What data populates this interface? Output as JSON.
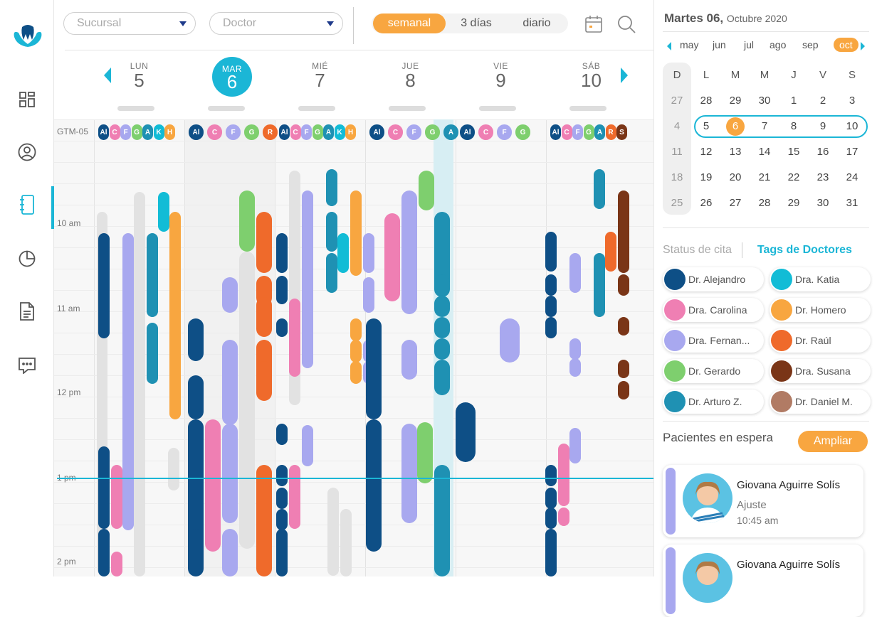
{
  "sidebar": {
    "items": [
      "dashboard-icon",
      "patients-icon",
      "agenda-icon",
      "reports-icon",
      "documents-icon",
      "messages-icon"
    ]
  },
  "toolbar": {
    "sucursal_placeholder": "Sucursal",
    "doctor_placeholder": "Doctor",
    "views": [
      "semanal",
      "3 días",
      "diario"
    ],
    "active_view": "semanal"
  },
  "week": {
    "days": [
      {
        "name": "LUN",
        "num": "5"
      },
      {
        "name": "MAR",
        "num": "6",
        "today": true
      },
      {
        "name": "MIÉ",
        "num": "7"
      },
      {
        "name": "JUE",
        "num": "8"
      },
      {
        "name": "VIE",
        "num": "9"
      },
      {
        "name": "SÁB",
        "num": "10"
      }
    ],
    "timezone": "GTM-05",
    "hours": [
      "10 am",
      "11 am",
      "12 pm",
      "1 pm",
      "2 pm"
    ]
  },
  "doctor_chips": [
    [
      "Al",
      "C",
      "F",
      "G",
      "A",
      "K",
      "H"
    ],
    [
      "Al",
      "C",
      "F",
      "G",
      "R"
    ],
    [
      "Al",
      "C",
      "F",
      "G",
      "A",
      "K",
      "H"
    ],
    [
      "Al",
      "C",
      "F",
      "G",
      "A"
    ],
    [
      "Al",
      "C",
      "F",
      "G"
    ],
    [
      "Al",
      "C",
      "F",
      "G",
      "A",
      "R",
      "S"
    ]
  ],
  "calendar": {
    "weekday": "Martes 06,",
    "month_year": "Octubre 2020",
    "months": [
      "may",
      "jun",
      "jul",
      "ago",
      "sep",
      "oct"
    ],
    "active_month": "oct",
    "weekday_headers": [
      "D",
      "L",
      "M",
      "M",
      "J",
      "V",
      "S"
    ],
    "weeks": [
      [
        "27",
        "28",
        "29",
        "30",
        "1",
        "2",
        "3"
      ],
      [
        "4",
        "5",
        "6",
        "7",
        "8",
        "9",
        "10"
      ],
      [
        "11",
        "12",
        "13",
        "14",
        "15",
        "16",
        "17"
      ],
      [
        "18",
        "19",
        "20",
        "21",
        "22",
        "23",
        "24"
      ],
      [
        "25",
        "26",
        "27",
        "28",
        "29",
        "30",
        "31"
      ]
    ],
    "selected_day": "6"
  },
  "tags": {
    "status_label": "Status de cita",
    "doctors_label": "Tags de Doctores",
    "items": [
      {
        "name": "Dr. Alejandro",
        "color": "#0e4f86"
      },
      {
        "name": "Dra. Katia",
        "color": "#12bcd6"
      },
      {
        "name": "Dra. Carolina",
        "color": "#ef7fb3"
      },
      {
        "name": "Dr. Homero",
        "color": "#f8a640"
      },
      {
        "name": "Dra. Fernan...",
        "color": "#a8a8ef"
      },
      {
        "name": "Dr. Raúl",
        "color": "#ef6a2b"
      },
      {
        "name": "Dr. Gerardo",
        "color": "#7ecf6e"
      },
      {
        "name": "Dra. Susana",
        "color": "#7a3517"
      },
      {
        "name": "Dr. Arturo Z.",
        "color": "#1f91b3"
      },
      {
        "name": "Dr. Daniel M.",
        "color": "#b17b64"
      }
    ]
  },
  "waiting": {
    "title": "Pacientes en espera",
    "expand_label": "Ampliar",
    "patients": [
      {
        "name": "Giovana Aguirre Solís",
        "reason": "Ajuste",
        "time": "10:45 am"
      },
      {
        "name": "Giovana Aguirre Solís",
        "reason": "",
        "time": ""
      }
    ]
  },
  "colors": {
    "accent": "#1bb6d6",
    "orange": "#f8a640"
  }
}
